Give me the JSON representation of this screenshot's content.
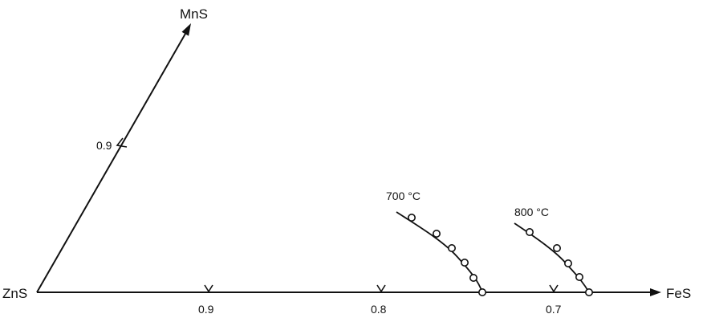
{
  "vertices": {
    "origin": "ZnS",
    "top": "MnS",
    "right": "FeS"
  },
  "ticks": {
    "edge_mns": [
      "0.9"
    ],
    "edge_fes": [
      "0.9",
      "0.8",
      "0.7"
    ]
  },
  "isotherms": [
    {
      "label": "700 °C",
      "point_count": 6
    },
    {
      "label": "800 °C",
      "point_count": 5
    }
  ],
  "colors": {
    "ink": "#111111",
    "background": "#ffffff"
  }
}
